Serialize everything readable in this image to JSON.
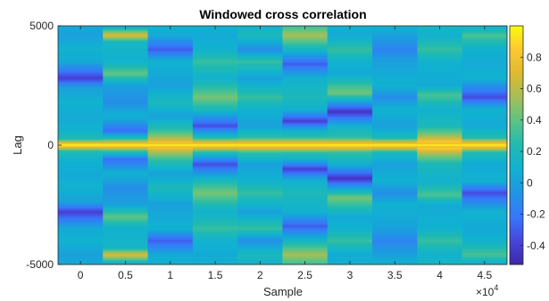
{
  "chart_data": {
    "type": "heatmap",
    "title": "Windowed cross correlation",
    "xlabel": "Sample",
    "ylabel": "Lag",
    "x_exponent_label": "×10",
    "x_exponent_power": "4",
    "xlim": [
      -2500,
      47500
    ],
    "ylim": [
      -5000,
      5000
    ],
    "x_ticks": [
      "0",
      "0.5",
      "1",
      "1.5",
      "2",
      "2.5",
      "3",
      "3.5",
      "4",
      "4.5"
    ],
    "x_tick_values": [
      0,
      5000,
      10000,
      15000,
      20000,
      25000,
      30000,
      35000,
      40000,
      45000
    ],
    "y_ticks": [
      "5000",
      "0",
      "-5000"
    ],
    "y_tick_values": [
      5000,
      0,
      -5000
    ],
    "colorbar": {
      "colormap": "parula",
      "clim": [
        -0.52,
        1.0
      ],
      "ticks": [
        "0.8",
        "0.6",
        "0.4",
        "0.2",
        "0",
        "-0.2",
        "-0.4"
      ],
      "tick_values": [
        0.8,
        0.6,
        0.4,
        0.2,
        0,
        -0.2,
        -0.4
      ]
    },
    "columns": [
      {
        "x": 0,
        "profile": [
          [
            5000,
            0.05
          ],
          [
            4600,
            0.0
          ],
          [
            4000,
            0.1
          ],
          [
            3500,
            0.05
          ],
          [
            2800,
            -0.4
          ],
          [
            2400,
            0.0
          ],
          [
            1800,
            0.1
          ],
          [
            1200,
            0.05
          ],
          [
            600,
            0.1
          ],
          [
            250,
            0.25
          ],
          [
            0,
            1.0
          ]
        ]
      },
      {
        "x": 5000,
        "profile": [
          [
            5000,
            0.0
          ],
          [
            4600,
            0.7
          ],
          [
            4300,
            0.15
          ],
          [
            3500,
            0.1
          ],
          [
            3000,
            0.4
          ],
          [
            2500,
            0.0
          ],
          [
            1800,
            -0.1
          ],
          [
            1200,
            0.1
          ],
          [
            600,
            -0.25
          ],
          [
            250,
            0.3
          ],
          [
            0,
            1.0
          ]
        ]
      },
      {
        "x": 10000,
        "profile": [
          [
            5000,
            0.1
          ],
          [
            4600,
            0.05
          ],
          [
            4000,
            -0.3
          ],
          [
            3500,
            0.1
          ],
          [
            2500,
            0.0
          ],
          [
            1800,
            0.2
          ],
          [
            1200,
            0.0
          ],
          [
            600,
            0.3
          ],
          [
            250,
            0.6
          ],
          [
            0,
            1.0
          ]
        ]
      },
      {
        "x": 15000,
        "profile": [
          [
            5000,
            0.1
          ],
          [
            4600,
            0.05
          ],
          [
            4000,
            0.1
          ],
          [
            3500,
            0.3
          ],
          [
            2800,
            0.1
          ],
          [
            2000,
            0.45
          ],
          [
            1500,
            0.2
          ],
          [
            800,
            -0.35
          ],
          [
            300,
            0.25
          ],
          [
            0,
            1.0
          ]
        ]
      },
      {
        "x": 20000,
        "profile": [
          [
            5000,
            0.1
          ],
          [
            4600,
            0.2
          ],
          [
            4000,
            -0.1
          ],
          [
            3500,
            0.3
          ],
          [
            2800,
            0.0
          ],
          [
            2000,
            0.3
          ],
          [
            1500,
            0.1
          ],
          [
            800,
            0.0
          ],
          [
            300,
            0.3
          ],
          [
            0,
            1.0
          ]
        ]
      },
      {
        "x": 25000,
        "profile": [
          [
            5000,
            0.3
          ],
          [
            4600,
            0.55
          ],
          [
            4000,
            0.15
          ],
          [
            3400,
            -0.3
          ],
          [
            2800,
            0.1
          ],
          [
            2000,
            0.2
          ],
          [
            1500,
            0.1
          ],
          [
            1000,
            -0.4
          ],
          [
            600,
            0.1
          ],
          [
            300,
            0.3
          ],
          [
            0,
            1.0
          ]
        ]
      },
      {
        "x": 30000,
        "profile": [
          [
            5000,
            0.1
          ],
          [
            4600,
            0.05
          ],
          [
            4000,
            0.3
          ],
          [
            3500,
            0.1
          ],
          [
            3000,
            0.05
          ],
          [
            2200,
            0.45
          ],
          [
            1400,
            -0.45
          ],
          [
            800,
            0.1
          ],
          [
            300,
            0.3
          ],
          [
            0,
            1.0
          ]
        ]
      },
      {
        "x": 35000,
        "profile": [
          [
            5000,
            0.1
          ],
          [
            4600,
            0.0
          ],
          [
            4000,
            -0.15
          ],
          [
            3500,
            0.0
          ],
          [
            2500,
            0.1
          ],
          [
            2000,
            -0.1
          ],
          [
            1500,
            0.1
          ],
          [
            800,
            0.0
          ],
          [
            300,
            0.2
          ],
          [
            0,
            1.0
          ]
        ]
      },
      {
        "x": 40000,
        "profile": [
          [
            5000,
            0.15
          ],
          [
            4600,
            0.1
          ],
          [
            4000,
            0.3
          ],
          [
            3500,
            0.1
          ],
          [
            2500,
            0.05
          ],
          [
            2100,
            0.35
          ],
          [
            1500,
            0.1
          ],
          [
            800,
            0.2
          ],
          [
            400,
            0.5
          ],
          [
            0,
            1.0
          ]
        ]
      },
      {
        "x": 45000,
        "profile": [
          [
            5000,
            0.05
          ],
          [
            4600,
            0.35
          ],
          [
            4000,
            0.1
          ],
          [
            3500,
            0.05
          ],
          [
            2800,
            0.1
          ],
          [
            2000,
            -0.35
          ],
          [
            1500,
            0.1
          ],
          [
            800,
            0.05
          ],
          [
            300,
            0.25
          ],
          [
            0,
            1.0
          ]
        ]
      }
    ]
  }
}
